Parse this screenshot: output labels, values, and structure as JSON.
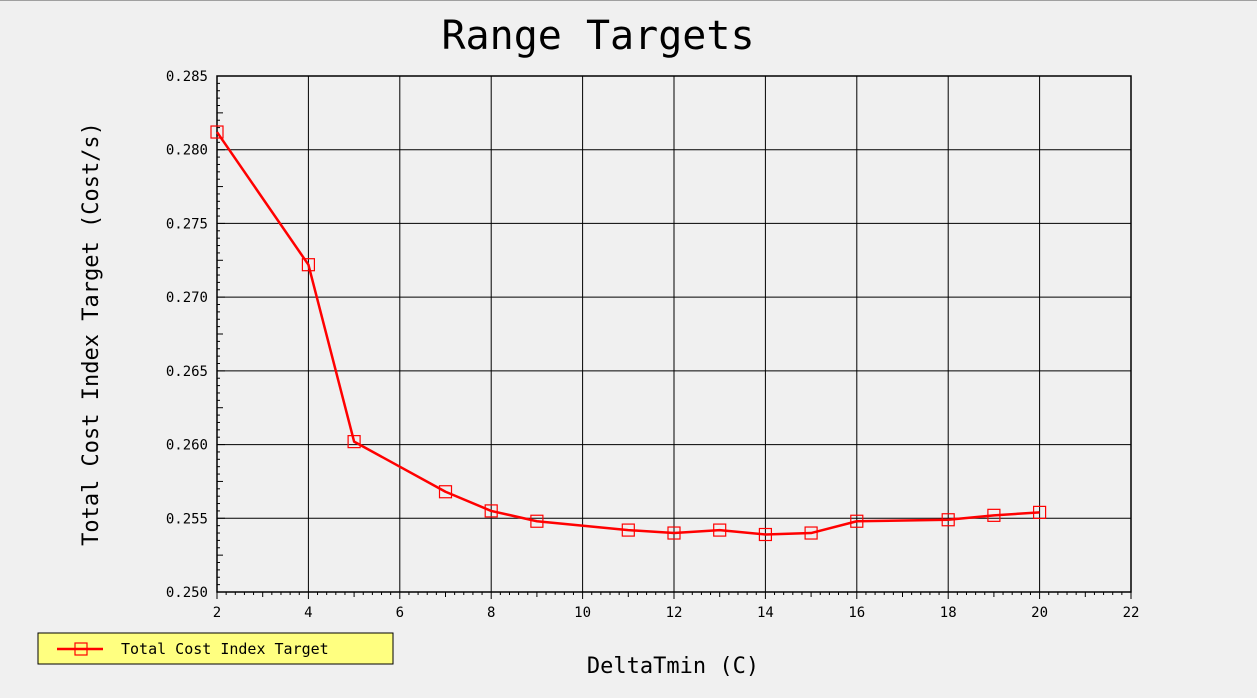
{
  "chart_data": {
    "type": "line",
    "title": "Range Targets",
    "xlabel": "DeltaTmin (C)",
    "ylabel": "Total Cost Index Target (Cost/s)",
    "xlim": [
      2,
      22
    ],
    "ylim": [
      0.25,
      0.285
    ],
    "x_ticks": [
      "2",
      "4",
      "6",
      "8",
      "10",
      "12",
      "14",
      "16",
      "18",
      "20",
      "22"
    ],
    "y_ticks": [
      "0.250",
      "0.255",
      "0.260",
      "0.265",
      "0.270",
      "0.275",
      "0.280",
      "0.285"
    ],
    "grid": true,
    "legend_position": "bottom-left",
    "series": [
      {
        "name": "Total Cost Index Target",
        "color": "#ff0000",
        "marker": "square",
        "x": [
          2,
          4,
          5,
          7,
          8,
          9,
          11,
          12,
          13,
          14,
          15,
          16,
          18,
          19,
          20
        ],
        "y": [
          0.2812,
          0.2722,
          0.2602,
          0.2568,
          0.2555,
          0.2548,
          0.2542,
          0.254,
          0.2542,
          0.2539,
          0.254,
          0.2548,
          0.2549,
          0.2552,
          0.2554
        ]
      }
    ]
  },
  "colors": {
    "background": "#f0f0f0",
    "legend_background": "#ffff80",
    "grid": "#000000"
  }
}
